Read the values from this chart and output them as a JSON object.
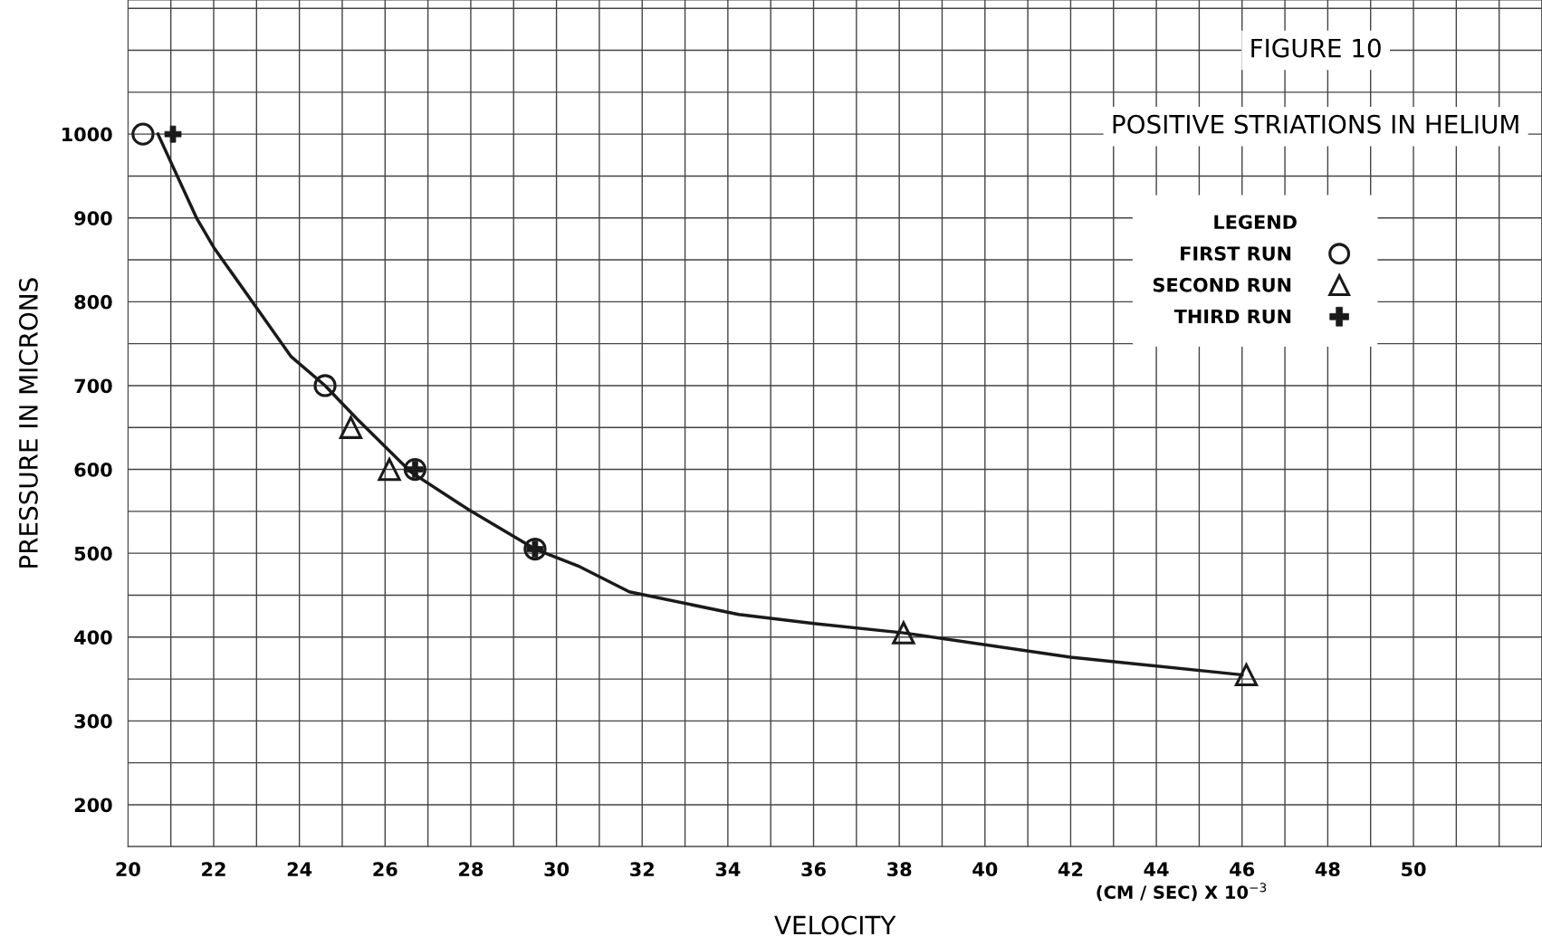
{
  "chart_data": {
    "type": "scatter",
    "title": "FIGURE 10",
    "subtitle": "POSITIVE STRIATIONS IN HELIUM",
    "xlabel": "VELOCITY",
    "ylabel": "PRESSURE IN MICRONS",
    "legend_title": "LEGEND",
    "annotations": [
      "(CM / SEC) X 10$^{−3}$"
    ],
    "series": [
      {
        "name": "FIRST RUN",
        "marker": "circle",
        "color": "#1a1a1a",
        "x": [
          20.35,
          24.6,
          26.7,
          29.5
        ],
        "values": [
          1000,
          700,
          600,
          505
        ]
      },
      {
        "name": "SECOND RUN",
        "marker": "triangle",
        "color": "#1a1a1a",
        "x": [
          25.2,
          26.1,
          38.1,
          46.1
        ],
        "values": [
          650,
          600,
          405,
          355
        ]
      },
      {
        "name": "THIRD RUN",
        "marker": "cross",
        "color": "#1a1a1a",
        "x": [
          21.05,
          26.7,
          29.5
        ],
        "values": [
          1000,
          600,
          505
        ]
      },
      {
        "type": "line",
        "marker": "none",
        "line_style": "solid",
        "color": "#1a1a1a",
        "x": [
          20.7,
          21.6,
          22.0,
          22.9,
          23.8,
          24.6,
          25.35,
          26.6,
          27.95,
          29.5,
          30.5,
          31.7,
          34.25,
          36.05,
          38.1,
          42.0,
          46.0
        ],
        "values": [
          1000,
          900,
          865,
          800,
          735,
          700,
          660,
          597,
          552,
          505,
          485,
          454,
          427,
          416,
          405,
          376,
          355
        ]
      }
    ],
    "xlim": [
      20,
      53
    ],
    "ylim": [
      150,
      1160
    ],
    "xticks": [
      20,
      22,
      24,
      26,
      28,
      30,
      32,
      34,
      36,
      38,
      40,
      42,
      44,
      46,
      48,
      50
    ],
    "yticks": [
      200,
      300,
      400,
      500,
      600,
      700,
      800,
      900,
      1000
    ],
    "grid": true,
    "legend": "top right"
  }
}
